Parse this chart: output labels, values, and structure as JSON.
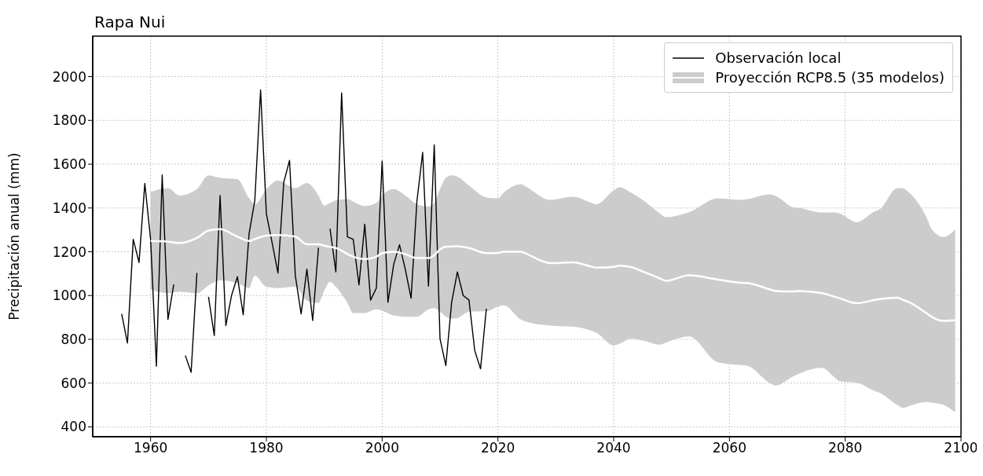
{
  "chart_data": {
    "type": "line",
    "title": "Rapa Nui",
    "ylabel": "Precipitación anual  (mm)",
    "xlim": [
      1950,
      2100
    ],
    "xticks": [
      1960,
      1980,
      2000,
      2020,
      2040,
      2060,
      2080,
      2100
    ],
    "ylim": [
      355,
      2185
    ],
    "yticks": [
      400,
      600,
      800,
      1000,
      1200,
      1400,
      1600,
      1800,
      2000
    ],
    "grid": true,
    "legend": "top right",
    "marker": "none",
    "line_style": "solid",
    "series": [
      {
        "name": "Observación local",
        "type": "line",
        "color": "#000000",
        "x": [
          1955,
          1956,
          1957,
          1958,
          1959,
          1960,
          1961,
          1962,
          1963,
          1964,
          1965,
          1966,
          1967,
          1968,
          1969,
          1970,
          1971,
          1972,
          1973,
          1974,
          1975,
          1976,
          1977,
          1978,
          1979,
          1980,
          1981,
          1982,
          1983,
          1984,
          1985,
          1986,
          1987,
          1988,
          1989,
          1990,
          1991,
          1992,
          1993,
          1994,
          1995,
          1996,
          1997,
          1998,
          1999,
          2000,
          2001,
          2002,
          2003,
          2004,
          2005,
          2006,
          2007,
          2008,
          2009,
          2010,
          2011,
          2012,
          2013,
          2014,
          2015,
          2016,
          2017,
          2018
        ],
        "values": [
          916,
          783,
          1257,
          1151,
          1512,
          1257,
          677,
          1551,
          891,
          1051,
          null,
          726,
          649,
          1103,
          null,
          994,
          817,
          1457,
          863,
          1002,
          1086,
          912,
          1280,
          1434,
          1939,
          1374,
          1240,
          1103,
          1517,
          1617,
          1091,
          916,
          1120,
          886,
          1219,
          null,
          1305,
          1108,
          1926,
          1268,
          1257,
          1049,
          1326,
          979,
          1034,
          1615,
          969,
          1143,
          1232,
          1120,
          988,
          1429,
          1654,
          1043,
          1688,
          802,
          680,
          968,
          1108,
          1000,
          980,
          748,
          665,
          940
        ]
      },
      {
        "name": "Proyección RCP8.5 (35 modelos)",
        "type": "line",
        "color": "#ffffff",
        "x": [
          1960,
          1963,
          1965,
          1968,
          1970,
          1972,
          1975,
          1977,
          1978,
          1980,
          1982,
          1985,
          1987,
          1989,
          1990,
          1991,
          1992,
          1994,
          1995,
          1997,
          1999,
          2000,
          2002,
          2004,
          2006,
          2008,
          2009,
          2010,
          2011,
          2012,
          2013,
          2015,
          2018,
          2020,
          2021,
          2024,
          2025,
          2029,
          2033,
          2036,
          2037,
          2040,
          2041,
          2043,
          2045,
          2048,
          2049,
          2053,
          2058,
          2062,
          2063,
          2067,
          2068,
          2071,
          2072,
          2076,
          2078,
          2079,
          2082,
          2085,
          2086,
          2089,
          2090,
          2091,
          2094,
          2095,
          2097,
          2099
        ],
        "values": [
          1249,
          1246,
          1240,
          1263,
          1297,
          1303,
          1269,
          1249,
          1258,
          1274,
          1276,
          1269,
          1234,
          1234,
          1228,
          1222,
          1217,
          1190,
          1177,
          1166,
          1177,
          1194,
          1200,
          1189,
          1171,
          1171,
          1185,
          1211,
          1223,
          1224,
          1225,
          1217,
          1194,
          1195,
          1200,
          1200,
          1190,
          1148,
          1152,
          1133,
          1127,
          1131,
          1136,
          1130,
          1110,
          1078,
          1067,
          1092,
          1073,
          1058,
          1057,
          1028,
          1021,
          1019,
          1021,
          1011,
          996,
          988,
          965,
          979,
          984,
          990,
          980,
          970,
          920,
          902,
          884,
          887
        ],
        "lower": [
          1028,
          1011,
          1017,
          1011,
          1046,
          1069,
          1057,
          1034,
          1091,
          1040,
          1034,
          1040,
          977,
          966,
          1023,
          1063,
          1040,
          966,
          920,
          920,
          937,
          931,
          909,
          903,
          903,
          937,
          943,
          926,
          903,
          895,
          897,
          926,
          928,
          950,
          955,
          890,
          880,
          863,
          858,
          840,
          830,
          772,
          780,
          803,
          795,
          776,
          785,
          813,
          695,
          682,
          680,
          600,
          589,
          630,
          643,
          670,
          630,
          609,
          602,
          565,
          555,
          500,
          487,
          495,
          514,
          510,
          500,
          466
        ],
        "upper": [
          1474,
          1491,
          1457,
          1486,
          1549,
          1537,
          1531,
          1446,
          1417,
          1486,
          1526,
          1491,
          1514,
          1457,
          1411,
          1423,
          1434,
          1440,
          1429,
          1409,
          1423,
          1457,
          1486,
          1457,
          1417,
          1406,
          1423,
          1486,
          1537,
          1549,
          1543,
          1503,
          1448,
          1444,
          1470,
          1509,
          1495,
          1437,
          1451,
          1425,
          1417,
          1480,
          1495,
          1470,
          1437,
          1375,
          1358,
          1380,
          1444,
          1437,
          1440,
          1462,
          1455,
          1403,
          1400,
          1379,
          1379,
          1375,
          1335,
          1383,
          1395,
          1491,
          1490,
          1471,
          1360,
          1301,
          1267,
          1301
        ]
      }
    ]
  }
}
